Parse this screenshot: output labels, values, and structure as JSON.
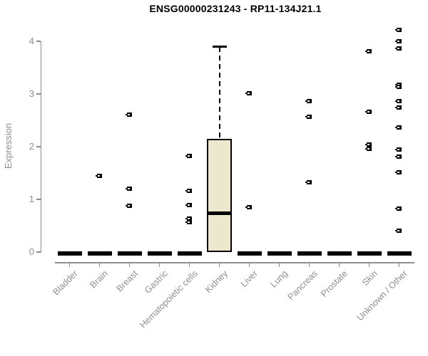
{
  "chart_data": {
    "type": "boxplot",
    "title": "ENSG00000231243 - RP11-134J21.1",
    "xlabel": "",
    "ylabel": "Expression",
    "ylim": [
      0,
      4.3
    ],
    "yticks": [
      0,
      1,
      2,
      3,
      4
    ],
    "grid": false,
    "legend": false,
    "categories": [
      "Bladder",
      "Brain",
      "Breast",
      "Gastric",
      "Hematopoietic cells",
      "Kidney",
      "Liver",
      "Lung",
      "Pancreas",
      "Prostate",
      "Skin",
      "Unknown / Other"
    ],
    "boxes": [
      {
        "category": "Bladder",
        "min": 0,
        "q1": 0,
        "median": 0,
        "q3": 0,
        "max": 0,
        "outliers": []
      },
      {
        "category": "Brain",
        "min": 0,
        "q1": 0,
        "median": 0,
        "q3": 0,
        "max": 0,
        "outliers": [
          1.45
        ]
      },
      {
        "category": "Breast",
        "min": 0,
        "q1": 0,
        "median": 0,
        "q3": 0,
        "max": 0,
        "outliers": [
          2.61,
          1.2,
          0.88
        ]
      },
      {
        "category": "Gastric",
        "min": 0,
        "q1": 0,
        "median": 0,
        "q3": 0,
        "max": 0,
        "outliers": []
      },
      {
        "category": "Hematopoietic cells",
        "min": 0,
        "q1": 0,
        "median": 0,
        "q3": 0,
        "max": 0,
        "outliers": [
          1.82,
          1.16,
          0.89,
          0.63,
          0.57
        ]
      },
      {
        "category": "Kidney",
        "min": 0,
        "q1": 0,
        "median": 0.73,
        "q3": 2.15,
        "max": 3.9,
        "outliers": []
      },
      {
        "category": "Liver",
        "min": 0,
        "q1": 0,
        "median": 0,
        "q3": 0,
        "max": 0,
        "outliers": [
          3.02,
          0.85
        ]
      },
      {
        "category": "Lung",
        "min": 0,
        "q1": 0,
        "median": 0,
        "q3": 0,
        "max": 0,
        "outliers": []
      },
      {
        "category": "Pancreas",
        "min": 0,
        "q1": 0,
        "median": 0,
        "q3": 0,
        "max": 0,
        "outliers": [
          2.87,
          2.57,
          1.33
        ]
      },
      {
        "category": "Prostate",
        "min": 0,
        "q1": 0,
        "median": 0,
        "q3": 0,
        "max": 0,
        "outliers": []
      },
      {
        "category": "Skin",
        "min": 0,
        "q1": 0,
        "median": 0,
        "q3": 0,
        "max": 0,
        "outliers": [
          3.81,
          2.66,
          2.04,
          1.96
        ]
      },
      {
        "category": "Unknown / Other",
        "min": 0,
        "q1": 0,
        "median": 0,
        "q3": 0,
        "max": 0,
        "outliers": [
          4.21,
          4.0,
          3.86,
          3.18,
          3.13,
          2.87,
          2.75,
          2.37,
          1.94,
          1.81,
          1.52,
          0.82,
          0.4
        ]
      }
    ]
  },
  "colors": {
    "box_fill": "#ece8cd",
    "box_border": "#000000",
    "axis_gray": "#8e8e8e",
    "background": "#ffffff"
  }
}
